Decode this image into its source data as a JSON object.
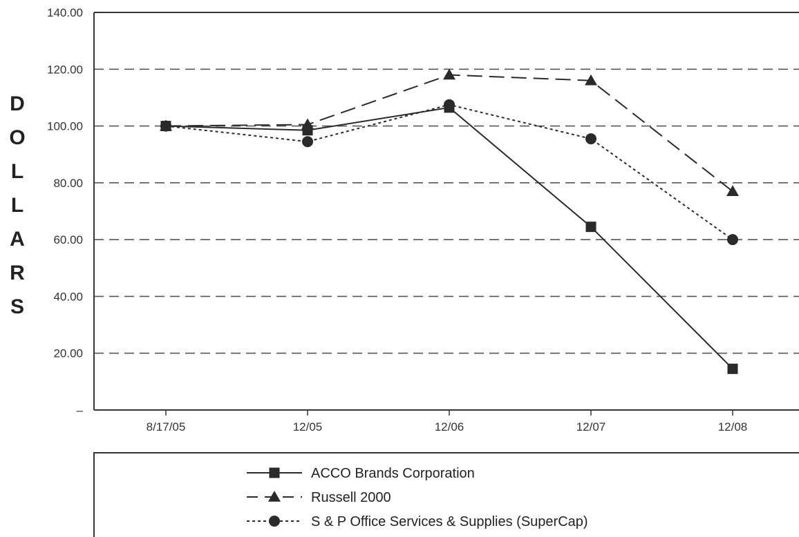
{
  "chart_data": {
    "type": "line",
    "title": "",
    "xlabel": "",
    "ylabel": "DOLLARS",
    "categories": [
      "8/17/05",
      "12/05",
      "12/06",
      "12/07",
      "12/08"
    ],
    "ylim": [
      0,
      140
    ],
    "y_ticks": [
      {
        "value": 0,
        "label": "–"
      },
      {
        "value": 20,
        "label": "20.00"
      },
      {
        "value": 40,
        "label": "40.00"
      },
      {
        "value": 60,
        "label": "60.00"
      },
      {
        "value": 80,
        "label": "80.00"
      },
      {
        "value": 100,
        "label": "100.00"
      },
      {
        "value": 120,
        "label": "120.00"
      },
      {
        "value": 140,
        "label": "140.00"
      }
    ],
    "grid": "horizontal dashed",
    "legend_position": "bottom",
    "series": [
      {
        "name": "ACCO Brands Corporation",
        "marker": "square",
        "line_style": "solid",
        "color": "#2a2a2a",
        "values": [
          100,
          98.5,
          106.5,
          64.5,
          14.5
        ]
      },
      {
        "name": "Russell 2000",
        "marker": "triangle",
        "line_style": "long-dash",
        "color": "#2a2a2a",
        "values": [
          100,
          100.5,
          118,
          116,
          77
        ]
      },
      {
        "name": "S & P Office Services & Supplies (SuperCap)",
        "marker": "circle",
        "line_style": "dotted",
        "color": "#2a2a2a",
        "values": [
          100,
          94.5,
          107.5,
          95.5,
          60
        ]
      }
    ]
  }
}
